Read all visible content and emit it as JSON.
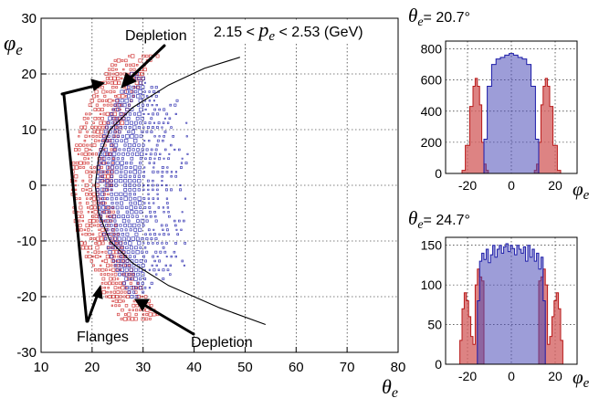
{
  "chart_data": [
    {
      "type": "scatter",
      "panel": "main",
      "x_symbol": "θ",
      "x_sub": "e",
      "y_symbol": "φ",
      "y_sub": "e",
      "xlim": [
        10,
        80
      ],
      "ylim": [
        -30,
        30
      ],
      "x_ticks": [
        "10",
        "20",
        "30",
        "40",
        "50",
        "60",
        "70",
        "80"
      ],
      "y_ticks": [
        "30",
        "20",
        "10",
        "0",
        "-10",
        "-20",
        "-30"
      ],
      "grid": true,
      "range_label": {
        "left": "2.15 <",
        "symbol": "p",
        "sub": "e",
        "right": "< 2.53 (GeV)"
      },
      "annotations": {
        "depletion_top": "Depletion",
        "depletion_bottom": "Depletion",
        "flanges": "Flanges"
      },
      "boundary_curve": [
        [
          54,
          -25
        ],
        [
          45,
          -22
        ],
        [
          35,
          -18
        ],
        [
          28,
          -14
        ],
        [
          23.5,
          -10
        ],
        [
          21.3,
          -5
        ],
        [
          20.6,
          0
        ],
        [
          21.3,
          5
        ],
        [
          23.5,
          10
        ],
        [
          28,
          14
        ],
        [
          35,
          18
        ],
        [
          42,
          21
        ],
        [
          49,
          23
        ]
      ],
      "series": [
        {
          "color": "#cc2222",
          "region": "edge band θ 16–26"
        },
        {
          "color": "#1a1aa8",
          "region": "core θ 20–41"
        }
      ]
    },
    {
      "type": "bar",
      "panel": "top-right",
      "theta_label": {
        "symbol": "θ",
        "sub": "e",
        "value": "= 20.7°"
      },
      "x_symbol": "φ",
      "x_sub": "e",
      "xlim": [
        -30,
        30
      ],
      "ylim": [
        0,
        850
      ],
      "x_ticks": [
        "-20",
        "0",
        "20"
      ],
      "y_ticks": [
        "800",
        "600",
        "400",
        "200",
        "0"
      ],
      "red_hist": [
        [
          -22,
          20
        ],
        [
          -20,
          180
        ],
        [
          -18,
          430
        ],
        [
          -17,
          560
        ],
        [
          -16,
          610
        ],
        [
          -15,
          560
        ],
        [
          -14,
          440
        ],
        [
          -13,
          200
        ],
        [
          -12,
          60
        ],
        [
          -11,
          20
        ],
        [
          11,
          20
        ],
        [
          12,
          60
        ],
        [
          13,
          200
        ],
        [
          14,
          440
        ],
        [
          15,
          560
        ],
        [
          16,
          610
        ],
        [
          17,
          560
        ],
        [
          18,
          430
        ],
        [
          20,
          180
        ],
        [
          22,
          20
        ]
      ],
      "blue_hist": [
        [
          -12,
          220
        ],
        [
          -10,
          560
        ],
        [
          -8,
          700
        ],
        [
          -6,
          735
        ],
        [
          -4,
          745
        ],
        [
          -2,
          760
        ],
        [
          0,
          770
        ],
        [
          2,
          760
        ],
        [
          4,
          745
        ],
        [
          6,
          735
        ],
        [
          8,
          700
        ],
        [
          10,
          560
        ],
        [
          12,
          220
        ]
      ]
    },
    {
      "type": "bar",
      "panel": "bottom-right",
      "theta_label": {
        "symbol": "θ",
        "sub": "e",
        "value": "= 24.7°"
      },
      "x_symbol": "φ",
      "x_sub": "e",
      "xlim": [
        -30,
        30
      ],
      "ylim": [
        0,
        160
      ],
      "x_ticks": [
        "-20",
        "0",
        "20"
      ],
      "y_ticks": [
        "150",
        "100",
        "50",
        "0"
      ],
      "red_hist": [
        [
          -23,
          30
        ],
        [
          -22,
          70
        ],
        [
          -21,
          90
        ],
        [
          -20,
          80
        ],
        [
          -19,
          60
        ],
        [
          -18,
          35
        ],
        [
          -17,
          25
        ],
        [
          -16,
          100
        ],
        [
          -15,
          120
        ],
        [
          -14,
          110
        ],
        [
          -13,
          105
        ],
        [
          13,
          105
        ],
        [
          14,
          110
        ],
        [
          15,
          120
        ],
        [
          16,
          100
        ],
        [
          17,
          25
        ],
        [
          18,
          35
        ],
        [
          19,
          60
        ],
        [
          20,
          80
        ],
        [
          21,
          90
        ],
        [
          22,
          70
        ],
        [
          23,
          30
        ]
      ],
      "blue_hist": [
        [
          -15,
          80
        ],
        [
          -14,
          130
        ],
        [
          -13,
          140
        ],
        [
          -12,
          132
        ],
        [
          -11,
          145
        ],
        [
          -10,
          128
        ],
        [
          -9,
          138
        ],
        [
          -8,
          150
        ],
        [
          -7,
          135
        ],
        [
          -6,
          145
        ],
        [
          -5,
          150
        ],
        [
          -4,
          140
        ],
        [
          -3,
          148
        ],
        [
          -2,
          152
        ],
        [
          -1,
          142
        ],
        [
          0,
          150
        ],
        [
          1,
          146
        ],
        [
          2,
          138
        ],
        [
          3,
          150
        ],
        [
          4,
          145
        ],
        [
          5,
          140
        ],
        [
          6,
          148
        ],
        [
          7,
          130
        ],
        [
          8,
          150
        ],
        [
          9,
          135
        ],
        [
          10,
          145
        ],
        [
          11,
          130
        ],
        [
          12,
          140
        ],
        [
          13,
          120
        ],
        [
          14,
          135
        ],
        [
          15,
          80
        ]
      ]
    }
  ]
}
